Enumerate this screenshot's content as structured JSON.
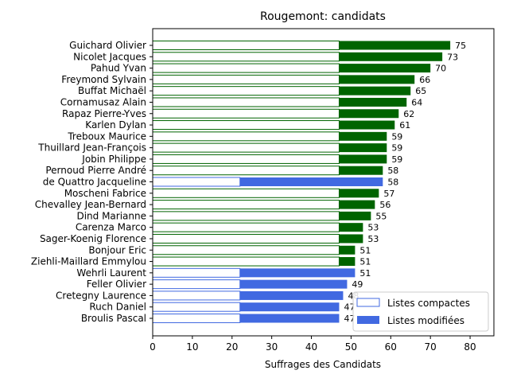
{
  "chart_data": {
    "type": "bar",
    "orientation": "horizontal",
    "title": "Rougemont: candidats",
    "xlabel": "Suffrages des Candidats",
    "ylabel": "",
    "xlim": [
      0,
      86
    ],
    "xticks": [
      0,
      10,
      20,
      30,
      40,
      50,
      60,
      70,
      80
    ],
    "grid": false,
    "legend_position": "lower-right",
    "colors": {
      "green": "#006400",
      "blue": "#4169e1",
      "compact_fill": "#ffffff"
    },
    "legend": [
      {
        "label": "Listes compactes",
        "style": "outline"
      },
      {
        "label": "Listes modifiées",
        "style": "filled"
      }
    ],
    "categories": [
      "Guichard Olivier",
      "Nicolet Jacques",
      "Pahud Yvan",
      "Freymond Sylvain",
      "Buffat Michaël",
      "Cornamusaz Alain",
      "Rapaz Pierre-Yves",
      "Karlen Dylan",
      "Treboux Maurice",
      "Thuillard Jean-François",
      "Jobin Philippe",
      "Pernoud Pierre André",
      "de Quattro Jacqueline",
      "Moscheni Fabrice",
      "Chevalley Jean-Bernard",
      "Dind Marianne",
      "Carenza Marco",
      "Sager-Koenig Florence",
      "Bonjour Eric",
      "Ziehli-Maillard Emmylou",
      "Wehrli Laurent",
      "Feller Olivier",
      "Cretegny Laurence",
      "Ruch Daniel",
      "Broulis Pascal"
    ],
    "series": [
      {
        "name": "Listes compactes",
        "values": [
          47,
          47,
          47,
          47,
          47,
          47,
          47,
          47,
          47,
          47,
          47,
          47,
          22,
          47,
          47,
          47,
          47,
          47,
          47,
          47,
          22,
          22,
          22,
          22,
          22
        ]
      },
      {
        "name": "Listes modifiées",
        "values": [
          28,
          26,
          23,
          19,
          18,
          17,
          15,
          14,
          12,
          12,
          12,
          11,
          36,
          10,
          9,
          8,
          6,
          6,
          4,
          4,
          29,
          27,
          26,
          25,
          25
        ]
      }
    ],
    "party_color": [
      "green",
      "green",
      "green",
      "green",
      "green",
      "green",
      "green",
      "green",
      "green",
      "green",
      "green",
      "green",
      "blue",
      "green",
      "green",
      "green",
      "green",
      "green",
      "green",
      "green",
      "blue",
      "blue",
      "blue",
      "blue",
      "blue"
    ],
    "totals": [
      75,
      73,
      70,
      66,
      65,
      64,
      62,
      61,
      59,
      59,
      59,
      58,
      58,
      57,
      56,
      55,
      53,
      53,
      51,
      51,
      51,
      49,
      48,
      47,
      47
    ]
  }
}
